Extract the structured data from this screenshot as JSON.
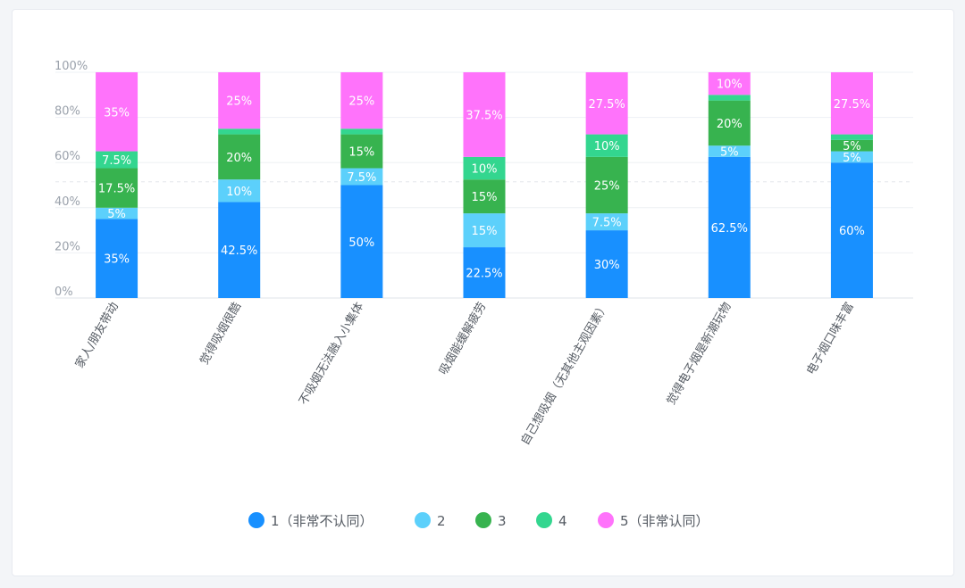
{
  "chart_data": {
    "type": "bar",
    "stacked": true,
    "grid": true,
    "legend_position": "bottom",
    "ylim": [
      0,
      100
    ],
    "y_ticks": [
      "0%",
      "20%",
      "40%",
      "60%",
      "80%",
      "100%"
    ],
    "categories": [
      "家人/朋友带动",
      "觉得吸烟很酷",
      "不吸烟无法融入小集体",
      "吸烟能缓解疲劳",
      "自己想吸烟（无其他主观因素）",
      "觉得电子烟是新潮玩物",
      "电子烟口味丰富"
    ],
    "series": [
      {
        "name": "1（非常不认同）",
        "color": "#1890ff",
        "values": [
          35,
          42.5,
          50,
          22.5,
          30,
          62.5,
          60
        ],
        "labels": [
          "35%",
          "42.5%",
          "50%",
          "22.5%",
          "30%",
          "62.5%",
          "60%"
        ]
      },
      {
        "name": "2",
        "color": "#5cd0fb",
        "values": [
          5,
          10,
          7.5,
          15,
          7.5,
          5,
          5
        ],
        "labels": [
          "5%",
          "10%",
          "7.5%",
          "15%",
          "7.5%",
          "5%",
          "5%"
        ]
      },
      {
        "name": "3",
        "color": "#37b34f",
        "values": [
          17.5,
          20,
          15,
          15,
          25,
          20,
          5
        ],
        "labels": [
          "17.5%",
          "20%",
          "15%",
          "15%",
          "25%",
          "20%",
          "5%"
        ]
      },
      {
        "name": "4",
        "color": "#33d68f",
        "values": [
          7.5,
          2.5,
          2.5,
          10,
          10,
          2.5,
          2.5
        ],
        "labels": [
          "7.5%",
          "",
          "",
          "10%",
          "10%",
          "",
          ""
        ]
      },
      {
        "name": "5（非常认同）",
        "color": "#ff73fb",
        "values": [
          35,
          25,
          25,
          37.5,
          27.5,
          10,
          27.5
        ],
        "labels": [
          "35%",
          "25%",
          "25%",
          "37.5%",
          "27.5%",
          "10%",
          "27.5%"
        ]
      }
    ]
  }
}
